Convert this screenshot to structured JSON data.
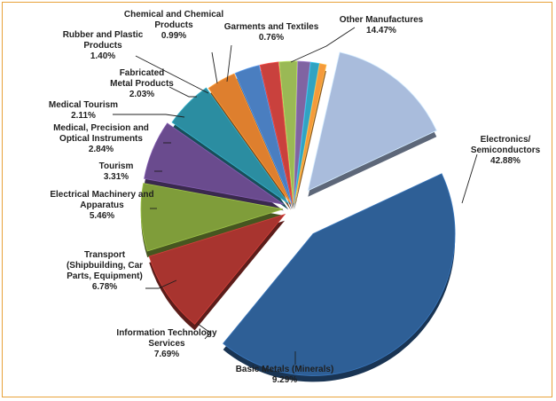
{
  "chart_data": {
    "type": "pie",
    "title": "",
    "style": "exploded-3d",
    "slices": [
      {
        "name": "Electronics/ Semiconductors",
        "label_lines": [
          "Electronics/",
          "Semiconductors"
        ],
        "value": 42.88,
        "value_label": "42.88%",
        "color": "#2e5f96"
      },
      {
        "name": "Basic Metals (Minerals)",
        "label_lines": [
          "Basic Metals (Minerals)"
        ],
        "value": 9.29,
        "value_label": "9.29%",
        "color": "#a8342f"
      },
      {
        "name": "Information Technology Services",
        "label_lines": [
          "Information Technology",
          "Services"
        ],
        "value": 7.69,
        "value_label": "7.69%",
        "color": "#7f9d3a"
      },
      {
        "name": "Transport (Shipbuilding, Car Parts, Equipment)",
        "label_lines": [
          "Transport",
          "(Shipbuilding, Car",
          "Parts, Equipment)"
        ],
        "value": 6.78,
        "value_label": "6.78%",
        "color": "#6a4b8e"
      },
      {
        "name": "Electrical Machinery and Apparatus",
        "label_lines": [
          "Electrical Machinery and",
          "Apparatus"
        ],
        "value": 5.46,
        "value_label": "5.46%",
        "color": "#2b8da1"
      },
      {
        "name": "Tourism",
        "label_lines": [
          "Tourism"
        ],
        "value": 3.31,
        "value_label": "3.31%",
        "color": "#de7f2e"
      },
      {
        "name": "Medical, Precision and Optical Instruments",
        "label_lines": [
          "Medical, Precision and",
          "Optical Instruments"
        ],
        "value": 2.84,
        "value_label": "2.84%",
        "color": "#4a7ec0"
      },
      {
        "name": "Medical Tourism",
        "label_lines": [
          "Medical Tourism"
        ],
        "value": 2.11,
        "value_label": "2.11%",
        "color": "#c9413d"
      },
      {
        "name": "Fabricated Metal Products",
        "label_lines": [
          "Fabricated",
          "Metal Products"
        ],
        "value": 2.03,
        "value_label": "2.03%",
        "color": "#9ab955"
      },
      {
        "name": "Rubber and Plastic Products",
        "label_lines": [
          "Rubber and Plastic",
          "Products"
        ],
        "value": 1.4,
        "value_label": "1.40%",
        "color": "#8064a2"
      },
      {
        "name": "Chemical and Chemical Products",
        "label_lines": [
          "Chemical and Chemical",
          "Products"
        ],
        "value": 0.99,
        "value_label": "0.99%",
        "color": "#31a3c2"
      },
      {
        "name": "Garments and Textiles",
        "label_lines": [
          "Garments and Textiles"
        ],
        "value": 0.76,
        "value_label": "0.76%",
        "color": "#f59a3c"
      },
      {
        "name": "Other Manufactures",
        "label_lines": [
          "Other Manufactures"
        ],
        "value": 14.47,
        "value_label": "14.47%",
        "color": "#a9bcdc"
      }
    ]
  }
}
